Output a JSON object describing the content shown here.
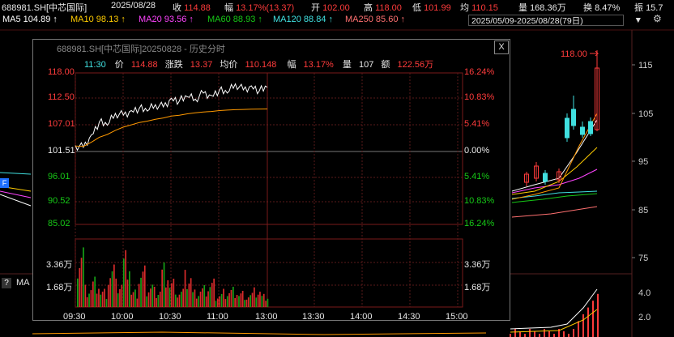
{
  "header": {
    "code": "688981.SH[中芯国际]",
    "date": "2025/08/28",
    "items": [
      {
        "label": "收",
        "value": "114.88",
        "color": "#ff3b3b"
      },
      {
        "label": "幅",
        "value": "13.17%(13.37)",
        "color": "#ff3b3b"
      },
      {
        "label": "开",
        "value": "102.00",
        "color": "#ff3b3b"
      },
      {
        "label": "高",
        "value": "118.00",
        "color": "#ff3b3b"
      },
      {
        "label": "低",
        "value": "101.99",
        "color": "#ff3b3b"
      },
      {
        "label": "均",
        "value": "110.15",
        "color": "#ff3b3b"
      },
      {
        "label": "量",
        "value": "168.36万",
        "color": "#e8e8e8"
      },
      {
        "label": "换",
        "value": "8.47%",
        "color": "#e8e8e8"
      },
      {
        "label": "振",
        "value": "15.7",
        "color": "#e8e8e8"
      }
    ]
  },
  "ma_bar": {
    "items": [
      {
        "text": "MA5 104.89 ↑",
        "color": "#ffffff"
      },
      {
        "text": "MA10 98.13 ↑",
        "color": "#ffcc00"
      },
      {
        "text": "MA20 93.56 ↑",
        "color": "#ff44ff"
      },
      {
        "text": "MA60 88.93 ↑",
        "color": "#16c816"
      },
      {
        "text": "MA120 88.84 ↑",
        "color": "#40e0e0"
      },
      {
        "text": "MA250 85.60 ↑",
        "color": "#ff7070"
      }
    ],
    "range": "2025/05/09-2025/08/28(79日)",
    "dropdown_icon": "chevron-down-icon",
    "settings_icon": "gear-icon"
  },
  "kline": {
    "peak_label": "118.00",
    "price_ticks": [
      "115",
      "105",
      "95",
      "85",
      "75"
    ],
    "volume_ticks": [
      "4.0",
      "2.0"
    ],
    "left_labels": {
      "flag": "F",
      "help": "?",
      "ma": "MA"
    }
  },
  "popup": {
    "title": "688981.SH[中芯国际]20250828 - 历史分时",
    "close_label": "X",
    "info": {
      "time": "11:30",
      "price_label": "价",
      "price": "114.88",
      "change_label": "涨跌",
      "change": "13.37",
      "avg_label": "均价",
      "avg": "110.148",
      "pct_label": "幅",
      "pct": "13.17%",
      "vol_label": "量",
      "vol": "107",
      "amt_label": "额",
      "amt": "122.56万"
    },
    "left_axis": [
      {
        "v": "118.00",
        "c": "#ff3b3b"
      },
      {
        "v": "112.50",
        "c": "#ff3b3b"
      },
      {
        "v": "107.01",
        "c": "#ff3b3b"
      },
      {
        "v": "101.51",
        "c": "#e8e8e8"
      },
      {
        "v": "96.01",
        "c": "#16c816"
      },
      {
        "v": "90.52",
        "c": "#16c816"
      },
      {
        "v": "85.02",
        "c": "#16c816"
      }
    ],
    "right_axis": [
      {
        "v": "16.24%",
        "c": "#ff3b3b"
      },
      {
        "v": "10.83%",
        "c": "#ff3b3b"
      },
      {
        "v": "5.41%",
        "c": "#ff3b3b"
      },
      {
        "v": "0.00%",
        "c": "#e8e8e8"
      },
      {
        "v": "5.41%",
        "c": "#16c816"
      },
      {
        "v": "10.83%",
        "c": "#16c816"
      },
      {
        "v": "16.24%",
        "c": "#16c816"
      }
    ],
    "vol_axis": [
      "3.36万",
      "1.68万"
    ],
    "time_axis": [
      "09:30",
      "10:00",
      "10:30",
      "11:00",
      "13:00",
      "13:30",
      "14:00",
      "14:30",
      "15:00"
    ]
  },
  "chart_data": {
    "type": "line",
    "x": [
      "09:30",
      "09:35",
      "09:40",
      "09:45",
      "09:50",
      "09:55",
      "10:00",
      "10:05",
      "10:10",
      "10:15",
      "10:20",
      "10:25",
      "10:30",
      "10:35",
      "10:40",
      "10:45",
      "10:50",
      "10:55",
      "11:00",
      "11:05",
      "11:10",
      "11:15",
      "11:20",
      "11:25",
      "11:30"
    ],
    "series": [
      {
        "values": [
          102.2,
          101.8,
          104.5,
          107.3,
          106.6,
          109.2,
          108.8,
          109.8,
          110.3,
          109.7,
          111.1,
          110.6,
          112.5,
          111.9,
          112.8,
          112.3,
          113.6,
          113.1,
          114.2,
          113.6,
          115.6,
          114.3,
          115.2,
          114.1,
          114.88
        ]
      },
      {
        "values": [
          102.1,
          102.0,
          102.9,
          104.0,
          104.6,
          105.5,
          106.2,
          106.7,
          107.2,
          107.5,
          107.9,
          108.2,
          108.6,
          108.8,
          109.1,
          109.3,
          109.5,
          109.6,
          109.8,
          109.9,
          110.0,
          110.05,
          110.1,
          110.13,
          110.148
        ]
      }
    ],
    "volume": [
      3.2,
      1.1,
      1.5,
      0.9,
      2.1,
      1.3,
      2.6,
      0.8,
      1.9,
      1.2,
      1.0,
      2.2,
      1.4,
      0.9,
      1.7,
      0.8,
      1.0,
      1.3,
      0.7,
      0.9,
      1.0,
      0.8,
      0.7,
      0.9,
      0.6
    ],
    "ylim": [
      85.02,
      118.0
    ],
    "volume_ylim": [
      0,
      3.6
    ]
  }
}
